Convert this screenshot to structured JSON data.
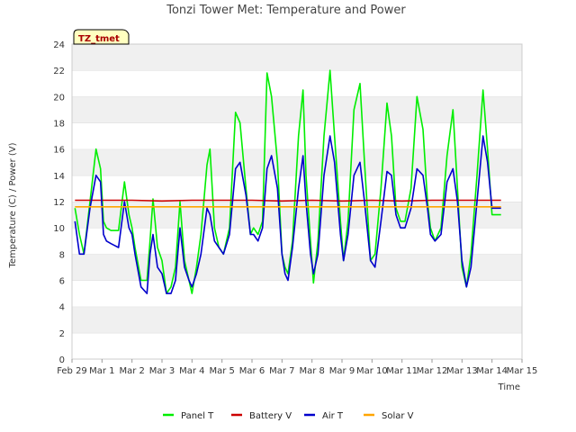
{
  "chart_data": {
    "type": "line",
    "title": "Tonzi Tower Met: Temperature and Power",
    "badge": "TZ_tmet",
    "xlabel": "Time",
    "ylabel": "Temperature (C) / Power (V)",
    "ylim": [
      0,
      24
    ],
    "xlim": [
      0,
      15
    ],
    "yticks": [
      0,
      2,
      4,
      6,
      8,
      10,
      12,
      14,
      16,
      18,
      20,
      22,
      24
    ],
    "xticks": [
      {
        "pos": 0,
        "label": "Feb 29"
      },
      {
        "pos": 1,
        "label": "Mar 1"
      },
      {
        "pos": 2,
        "label": "Mar 2"
      },
      {
        "pos": 3,
        "label": "Mar 3"
      },
      {
        "pos": 4,
        "label": "Mar 4"
      },
      {
        "pos": 5,
        "label": "Mar 5"
      },
      {
        "pos": 6,
        "label": "Mar 6"
      },
      {
        "pos": 7,
        "label": "Mar 7"
      },
      {
        "pos": 8,
        "label": "Mar 8"
      },
      {
        "pos": 9,
        "label": "Mar 9"
      },
      {
        "pos": 10,
        "label": "Mar 10"
      },
      {
        "pos": 11,
        "label": "Mar 11"
      },
      {
        "pos": 12,
        "label": "Mar 12"
      },
      {
        "pos": 13,
        "label": "Mar 13"
      },
      {
        "pos": 14,
        "label": "Mar 14"
      },
      {
        "pos": 15,
        "label": "Mar 15"
      }
    ],
    "series": [
      {
        "name": "Panel T",
        "color": "#00ee00",
        "x": [
          0.1,
          0.25,
          0.4,
          0.6,
          0.8,
          0.95,
          1.05,
          1.15,
          1.3,
          1.55,
          1.75,
          1.9,
          2.0,
          2.1,
          2.3,
          2.5,
          2.6,
          2.7,
          2.85,
          3.0,
          3.15,
          3.3,
          3.45,
          3.6,
          3.75,
          3.9,
          4.0,
          4.15,
          4.3,
          4.5,
          4.6,
          4.75,
          4.9,
          5.05,
          5.25,
          5.45,
          5.6,
          5.8,
          5.95,
          6.05,
          6.2,
          6.35,
          6.5,
          6.65,
          6.85,
          7.0,
          7.1,
          7.2,
          7.35,
          7.55,
          7.7,
          7.8,
          7.95,
          8.05,
          8.2,
          8.4,
          8.6,
          8.75,
          8.95,
          9.05,
          9.2,
          9.4,
          9.6,
          9.75,
          9.95,
          10.1,
          10.3,
          10.5,
          10.65,
          10.8,
          10.95,
          11.1,
          11.3,
          11.5,
          11.7,
          11.85,
          11.95,
          12.1,
          12.3,
          12.5,
          12.7,
          12.85,
          13.0,
          13.15,
          13.3,
          13.5,
          13.7,
          13.85,
          14.0,
          14.15,
          14.3
        ],
        "y": [
          11.5,
          9.5,
          8.0,
          12.0,
          16.0,
          14.5,
          10.5,
          10.0,
          9.8,
          9.8,
          13.5,
          11.0,
          10.0,
          8.5,
          6.0,
          6.0,
          9.0,
          12.2,
          8.5,
          7.5,
          5.0,
          5.5,
          7.0,
          12.0,
          7.5,
          6.0,
          5.0,
          7.0,
          9.5,
          14.8,
          16.0,
          10.0,
          8.5,
          8.0,
          10.0,
          18.8,
          18.0,
          13.0,
          9.5,
          10.0,
          9.5,
          10.5,
          21.8,
          20.0,
          15.0,
          8.0,
          7.0,
          6.5,
          9.0,
          17.0,
          20.5,
          14.0,
          9.0,
          5.8,
          9.0,
          17.0,
          22.0,
          17.0,
          10.5,
          7.5,
          10.5,
          19.0,
          21.0,
          15.0,
          7.5,
          8.0,
          13.0,
          19.5,
          17.0,
          11.5,
          10.5,
          10.5,
          13.0,
          20.0,
          17.5,
          12.0,
          10.0,
          9.0,
          10.0,
          15.5,
          19.0,
          13.0,
          7.0,
          5.5,
          8.0,
          14.0,
          20.5,
          16.0,
          11.0,
          11.0,
          11.0
        ]
      },
      {
        "name": "Battery V",
        "color": "#cc0000",
        "x": [
          0.1,
          1.0,
          2.0,
          3.0,
          4.0,
          5.0,
          6.0,
          7.0,
          8.0,
          9.0,
          10.0,
          11.0,
          12.0,
          13.0,
          14.0,
          14.3
        ],
        "y": [
          12.1,
          12.1,
          12.1,
          12.05,
          12.1,
          12.1,
          12.1,
          12.05,
          12.1,
          12.05,
          12.1,
          12.05,
          12.1,
          12.1,
          12.1,
          12.1
        ]
      },
      {
        "name": "Air T",
        "color": "#0000cc",
        "x": [
          0.1,
          0.25,
          0.4,
          0.6,
          0.8,
          0.95,
          1.05,
          1.15,
          1.3,
          1.55,
          1.75,
          1.9,
          2.0,
          2.1,
          2.3,
          2.5,
          2.6,
          2.7,
          2.85,
          3.0,
          3.15,
          3.3,
          3.45,
          3.6,
          3.75,
          3.9,
          4.0,
          4.15,
          4.3,
          4.5,
          4.6,
          4.75,
          4.9,
          5.05,
          5.25,
          5.45,
          5.6,
          5.8,
          5.95,
          6.05,
          6.2,
          6.35,
          6.5,
          6.65,
          6.85,
          7.0,
          7.1,
          7.2,
          7.35,
          7.55,
          7.7,
          7.8,
          7.95,
          8.05,
          8.2,
          8.4,
          8.6,
          8.75,
          8.95,
          9.05,
          9.2,
          9.4,
          9.6,
          9.75,
          9.95,
          10.1,
          10.3,
          10.5,
          10.65,
          10.8,
          10.95,
          11.1,
          11.3,
          11.5,
          11.7,
          11.85,
          11.95,
          12.1,
          12.3,
          12.5,
          12.7,
          12.85,
          13.0,
          13.15,
          13.3,
          13.5,
          13.7,
          13.85,
          14.0,
          14.15,
          14.3
        ],
        "y": [
          10.5,
          8.0,
          8.0,
          11.5,
          14.0,
          13.5,
          9.5,
          9.0,
          8.8,
          8.5,
          12.0,
          10.0,
          9.5,
          8.0,
          5.5,
          5.0,
          8.0,
          9.5,
          7.0,
          6.5,
          5.0,
          5.0,
          6.0,
          10.0,
          7.0,
          6.0,
          5.5,
          6.5,
          8.0,
          11.5,
          11.0,
          9.0,
          8.5,
          8.0,
          9.5,
          14.5,
          15.0,
          12.5,
          9.5,
          9.5,
          9.0,
          10.0,
          14.5,
          15.5,
          13.0,
          8.0,
          6.5,
          6.0,
          8.5,
          13.0,
          15.5,
          12.0,
          8.0,
          6.5,
          8.0,
          14.0,
          17.0,
          15.0,
          9.5,
          7.5,
          9.5,
          14.0,
          15.0,
          12.0,
          7.5,
          7.0,
          10.5,
          14.3,
          14.0,
          11.0,
          10.0,
          10.0,
          11.5,
          14.5,
          14.0,
          11.5,
          9.5,
          9.0,
          9.5,
          13.5,
          14.5,
          12.0,
          7.5,
          5.5,
          7.0,
          12.0,
          17.0,
          15.0,
          11.5,
          11.5,
          11.5
        ]
      },
      {
        "name": "Solar V",
        "color": "#ffa500",
        "x": [
          0.1,
          1.0,
          2.0,
          3.0,
          4.0,
          5.0,
          6.0,
          7.0,
          8.0,
          9.0,
          10.0,
          11.0,
          12.0,
          13.0,
          14.0,
          14.3
        ],
        "y": [
          11.6,
          11.6,
          11.6,
          11.6,
          11.6,
          11.6,
          11.6,
          11.6,
          11.6,
          11.6,
          11.6,
          11.6,
          11.6,
          11.6,
          11.6,
          11.6
        ]
      }
    ],
    "legend": [
      "Panel T",
      "Battery V",
      "Air T",
      "Solar V"
    ]
  }
}
